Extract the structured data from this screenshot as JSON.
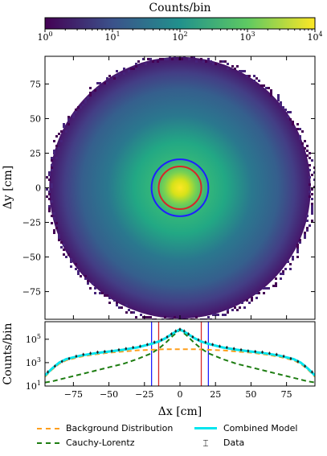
{
  "chart_data": [
    {
      "type": "heatmap",
      "colorbar": {
        "label": "Counts/bin",
        "scale": "log",
        "range": [
          1,
          10000
        ],
        "ticks": [
          {
            "base": "10",
            "exp": "0"
          },
          {
            "base": "10",
            "exp": "1"
          },
          {
            "base": "10",
            "exp": "2"
          },
          {
            "base": "10",
            "exp": "3"
          },
          {
            "base": "10",
            "exp": "4"
          }
        ],
        "colormap": [
          "#440154",
          "#3b528b",
          "#21918c",
          "#5ec962",
          "#fde725"
        ]
      },
      "xlabel": "Δx [cm]",
      "ylabel": "Δy [cm]",
      "xlim": [
        -95,
        95
      ],
      "ylim": [
        -95,
        95
      ],
      "yticks": [
        "75",
        "50",
        "25",
        "0",
        "−25",
        "−50",
        "−75"
      ],
      "yticks_values": [
        75,
        50,
        25,
        0,
        -25,
        -50,
        -75
      ],
      "distribution": {
        "center": [
          0,
          0
        ],
        "outer_radius": 92,
        "peak_counts": 10000,
        "edge_counts": 1
      },
      "circles": [
        {
          "radius": 15,
          "color": "#d62728"
        },
        {
          "radius": 20,
          "color": "#1f1fff"
        }
      ]
    },
    {
      "type": "line",
      "xlabel": "Δx [cm]",
      "ylabel": "Counts/bin",
      "xlim": [
        -95,
        95
      ],
      "ylim_log": [
        1,
        6.5
      ],
      "xticks": [
        "−75",
        "−50",
        "−25",
        "0",
        "25",
        "50",
        "75"
      ],
      "xticks_values": [
        -75,
        -50,
        -25,
        0,
        25,
        50,
        75
      ],
      "yticks": [
        {
          "base": "10",
          "exp": "1"
        },
        {
          "base": "10",
          "exp": "3"
        },
        {
          "base": "10",
          "exp": "5"
        }
      ],
      "yticks_values": [
        1,
        3,
        5
      ],
      "vlines": [
        {
          "x": -20,
          "color": "#1f1fff"
        },
        {
          "x": -15,
          "color": "#d62728"
        },
        {
          "x": 15,
          "color": "#d62728"
        },
        {
          "x": 20,
          "color": "#1f1fff"
        }
      ],
      "series": [
        {
          "name": "Background Distribution",
          "style": "dashed",
          "color": "#ff9f1c",
          "x": [
            -95,
            -90,
            -85,
            -80,
            -70,
            -60,
            -50,
            -40,
            -30,
            -20,
            -10,
            0,
            10,
            20,
            30,
            40,
            50,
            60,
            70,
            80,
            85,
            90,
            95
          ],
          "y": [
            1.8,
            2.4,
            2.9,
            3.2,
            3.5,
            3.7,
            3.85,
            3.95,
            4.05,
            4.1,
            4.15,
            4.15,
            4.15,
            4.1,
            4.05,
            3.95,
            3.85,
            3.7,
            3.5,
            3.2,
            2.9,
            2.4,
            1.8
          ]
        },
        {
          "name": "Cauchy-Lorentz",
          "style": "dashed",
          "color": "#1e7d12",
          "x": [
            -95,
            -90,
            -80,
            -70,
            -60,
            -50,
            -40,
            -30,
            -20,
            -15,
            -10,
            -5,
            0,
            5,
            10,
            15,
            20,
            30,
            40,
            50,
            60,
            70,
            80,
            90,
            95
          ],
          "y": [
            1.3,
            1.4,
            1.7,
            2.0,
            2.3,
            2.6,
            2.9,
            3.3,
            3.8,
            4.2,
            4.7,
            5.3,
            5.8,
            5.3,
            4.7,
            4.2,
            3.8,
            3.3,
            2.9,
            2.6,
            2.3,
            2.0,
            1.7,
            1.4,
            1.3
          ]
        },
        {
          "name": "Combined Model",
          "style": "solid",
          "color": "#00e5ee",
          "x": [
            -95,
            -90,
            -85,
            -80,
            -70,
            -60,
            -50,
            -40,
            -30,
            -20,
            -15,
            -10,
            -5,
            0,
            5,
            10,
            15,
            20,
            30,
            40,
            50,
            60,
            70,
            80,
            85,
            90,
            95
          ],
          "y": [
            1.9,
            2.5,
            3.0,
            3.3,
            3.6,
            3.8,
            3.95,
            4.1,
            4.3,
            4.6,
            4.8,
            5.1,
            5.5,
            5.85,
            5.5,
            5.1,
            4.8,
            4.6,
            4.3,
            4.1,
            3.95,
            3.8,
            3.6,
            3.3,
            3.0,
            2.5,
            1.9
          ]
        },
        {
          "name": "Data",
          "style": "markers",
          "color": "#222222",
          "x": [
            -93,
            -88,
            -83,
            -78,
            -73,
            -68,
            -63,
            -58,
            -53,
            -48,
            -43,
            -38,
            -33,
            -28,
            -23,
            -18,
            -13,
            -9,
            -6,
            -3,
            0,
            3,
            6,
            9,
            13,
            18,
            23,
            28,
            33,
            38,
            43,
            48,
            53,
            58,
            63,
            68,
            73,
            78,
            83,
            88,
            93
          ],
          "y": [
            2.2,
            2.7,
            3.1,
            3.35,
            3.55,
            3.7,
            3.8,
            3.9,
            3.95,
            4.0,
            4.1,
            4.2,
            4.3,
            4.4,
            4.55,
            4.75,
            4.95,
            5.2,
            5.45,
            5.7,
            5.85,
            5.7,
            5.45,
            5.2,
            4.95,
            4.75,
            4.55,
            4.4,
            4.3,
            4.2,
            4.1,
            4.0,
            3.95,
            3.9,
            3.8,
            3.7,
            3.55,
            3.35,
            3.1,
            2.7,
            2.2
          ]
        }
      ]
    }
  ]
}
